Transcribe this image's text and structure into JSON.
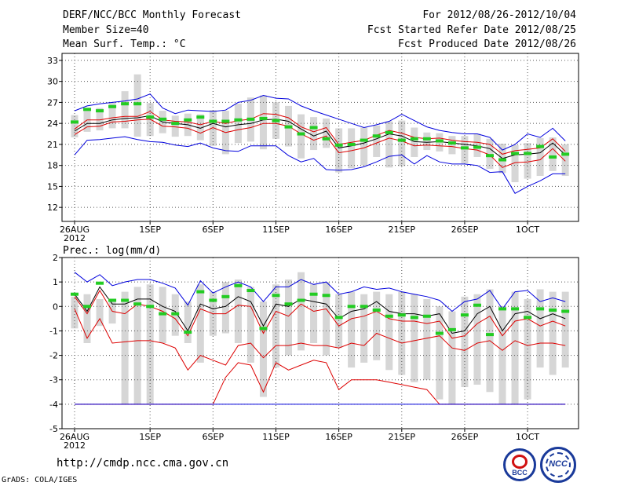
{
  "header": {
    "title": "DERF/NCC/BCC Monthly Forecast",
    "member_size": "Member Size=40",
    "variable1": "Mean Surf. Temp.: °C",
    "period": "For 2012/08/26-2012/10/04",
    "fcst_started": "Fcst Started Refer Date 2012/08/25",
    "fcst_produced": "Fcst Produced Date 2012/08/26"
  },
  "footer": {
    "url": "http://cmdp.ncc.cma.gov.cn",
    "credit": "GrADS: COLA/IGES",
    "logo_bcc": "BCC",
    "logo_ncc": "NCC"
  },
  "colors": {
    "blue": "#0000dd",
    "red": "#dd0000",
    "green": "#22cc22",
    "box": "#d6d6d6",
    "grid": "#555555"
  },
  "chart_data": [
    {
      "type": "line",
      "title": "Mean Surf. Temp.: °C",
      "xlabel": "",
      "ylabel": "",
      "ylim": [
        10,
        34
      ],
      "yticks": [
        12,
        15,
        18,
        21,
        24,
        27,
        30,
        33
      ],
      "x": "days 0..39 (2012-08-26 .. 2012-10-04)",
      "xtick_days": [
        0,
        6,
        11,
        16,
        21,
        26,
        31,
        36
      ],
      "xtick_labels": [
        "26AUG",
        "1SEP",
        "6SEP",
        "11SEP",
        "16SEP",
        "21SEP",
        "26SEP",
        "1OCT"
      ],
      "xtick_sublabel": "2012",
      "series": [
        {
          "name": "max",
          "color": "#0000dd",
          "values": [
            25.8,
            26.5,
            26.8,
            27.0,
            27.2,
            27.5,
            28.2,
            26.2,
            25.4,
            25.9,
            25.8,
            25.7,
            25.9,
            27.0,
            27.3,
            28.0,
            27.6,
            27.5,
            26.5,
            25.8,
            25.2,
            24.6,
            24.0,
            23.4,
            23.8,
            24.3,
            25.3,
            24.4,
            23.5,
            23.0,
            22.7,
            22.5,
            22.5,
            22.0,
            20.2,
            21.0,
            22.5,
            22.0,
            23.3,
            21.5
          ]
        },
        {
          "name": "upper",
          "color": "#dd0000",
          "values": [
            23.2,
            24.5,
            24.5,
            24.8,
            25.0,
            25.0,
            25.7,
            24.5,
            24.3,
            24.2,
            23.8,
            24.3,
            24.0,
            24.4,
            24.6,
            25.4,
            25.3,
            24.8,
            23.5,
            22.8,
            23.4,
            21.0,
            21.3,
            21.6,
            22.3,
            23.0,
            22.6,
            22.0,
            21.8,
            21.9,
            21.6,
            21.4,
            21.3,
            21.0,
            19.6,
            20.1,
            20.3,
            20.5,
            21.8,
            20.0
          ]
        },
        {
          "name": "mean",
          "color": "#000000",
          "values": [
            22.9,
            24.0,
            24.0,
            24.5,
            24.7,
            24.8,
            25.1,
            24.2,
            24.0,
            23.8,
            23.3,
            24.0,
            23.5,
            23.8,
            24.0,
            24.5,
            24.6,
            24.3,
            23.2,
            22.2,
            22.9,
            20.5,
            20.8,
            21.2,
            21.8,
            22.5,
            22.2,
            21.4,
            21.3,
            21.4,
            21.2,
            21.0,
            20.8,
            20.4,
            19.0,
            19.5,
            19.6,
            19.8,
            21.2,
            19.5
          ]
        },
        {
          "name": "lower",
          "color": "#dd0000",
          "values": [
            22.4,
            23.5,
            23.6,
            24.2,
            24.3,
            24.5,
            24.6,
            23.6,
            23.5,
            23.3,
            22.6,
            23.4,
            22.7,
            23.1,
            23.4,
            24.0,
            24.0,
            23.6,
            22.5,
            21.6,
            22.2,
            19.8,
            20.1,
            20.5,
            21.2,
            21.9,
            21.5,
            20.8,
            20.9,
            20.8,
            20.7,
            20.4,
            20.2,
            19.5,
            17.7,
            18.4,
            18.5,
            18.8,
            20.4,
            18.6
          ]
        },
        {
          "name": "min",
          "color": "#0000dd",
          "values": [
            19.5,
            21.6,
            21.7,
            21.9,
            22.1,
            21.7,
            21.4,
            21.3,
            20.9,
            20.7,
            21.2,
            20.5,
            20.1,
            20.0,
            20.8,
            20.8,
            20.8,
            19.4,
            18.5,
            19.0,
            17.4,
            17.3,
            17.4,
            17.8,
            18.5,
            19.3,
            19.5,
            18.2,
            19.4,
            18.5,
            18.2,
            18.2,
            18.0,
            17.0,
            17.1,
            14.0,
            15.0,
            15.8,
            16.8,
            16.8
          ]
        },
        {
          "name": "ens_box_top",
          "color": "#d6d6d6",
          "values": [
            25.2,
            25.8,
            26.2,
            27.0,
            28.6,
            31.0,
            26.9,
            25.8,
            25.1,
            25.4,
            25.3,
            25.9,
            25.8,
            26.8,
            27.7,
            28.0,
            27.0,
            26.5,
            25.3,
            24.9,
            24.7,
            23.3,
            23.3,
            23.4,
            23.7,
            24.3,
            24.4,
            23.4,
            22.7,
            22.6,
            22.2,
            22.2,
            22.5,
            21.8,
            21.1,
            20.9,
            21.2,
            21.9,
            22.0,
            21.0
          ]
        },
        {
          "name": "ens_box_bottom",
          "color": "#d6d6d6",
          "values": [
            22.0,
            22.8,
            23.0,
            23.3,
            23.3,
            22.1,
            22.2,
            22.6,
            22.1,
            22.2,
            21.6,
            20.8,
            19.6,
            21.2,
            21.4,
            20.3,
            21.8,
            20.7,
            19.0,
            20.2,
            20.5,
            17.0,
            17.6,
            18.0,
            19.2,
            17.7,
            17.9,
            19.2,
            20.2,
            20.0,
            19.6,
            18.3,
            19.2,
            17.5,
            16.9,
            15.6,
            16.1,
            16.5,
            17.2,
            16.5
          ]
        },
        {
          "name": "ens_median",
          "color": "#22cc22",
          "values": [
            24.2,
            26.0,
            25.8,
            26.4,
            26.8,
            26.8,
            24.9,
            24.6,
            24.0,
            24.5,
            24.9,
            24.3,
            24.3,
            24.5,
            24.6,
            24.7,
            24.4,
            23.5,
            22.5,
            23.4,
            21.8,
            20.9,
            21.0,
            21.6,
            22.2,
            22.7,
            21.6,
            21.8,
            21.8,
            21.5,
            21.2,
            20.5,
            20.6,
            19.4,
            18.8,
            19.7,
            19.7,
            20.7,
            19.2,
            19.6
          ]
        }
      ]
    },
    {
      "type": "line",
      "title": "Prec.: log(mm/d)",
      "xlabel": "",
      "ylabel": "",
      "ylim": [
        -5,
        2
      ],
      "yticks": [
        -5,
        -4,
        -3,
        -2,
        -1,
        0,
        1,
        2
      ],
      "x": "days 0..39 (2012-08-26 .. 2012-10-04)",
      "xtick_days": [
        0,
        6,
        11,
        16,
        21,
        26,
        31,
        36
      ],
      "xtick_labels": [
        "26AUG",
        "1SEP",
        "6SEP",
        "11SEP",
        "16SEP",
        "21SEP",
        "26SEP",
        "1OCT"
      ],
      "xtick_sublabel": "2012",
      "series": [
        {
          "name": "max",
          "color": "#0000dd",
          "values": [
            1.4,
            1.0,
            1.3,
            0.85,
            1.0,
            1.1,
            1.1,
            0.95,
            0.75,
            0.05,
            1.05,
            0.55,
            0.8,
            1.0,
            0.8,
            0.2,
            0.8,
            0.8,
            1.1,
            0.9,
            1.0,
            0.5,
            0.6,
            0.8,
            0.7,
            0.75,
            0.6,
            0.5,
            0.4,
            0.25,
            -0.2,
            0.2,
            0.3,
            0.65,
            -0.1,
            0.6,
            0.65,
            0.2,
            0.35,
            0.2
          ]
        },
        {
          "name": "mean",
          "color": "#000000",
          "values": [
            0.5,
            -0.2,
            0.8,
            0.1,
            0.1,
            0.3,
            0.3,
            0.0,
            -0.2,
            -1.0,
            0.1,
            -0.1,
            0.0,
            0.4,
            0.2,
            -0.8,
            0.1,
            0.0,
            0.3,
            0.2,
            0.1,
            -0.5,
            -0.2,
            -0.1,
            0.2,
            -0.2,
            -0.3,
            -0.3,
            -0.4,
            -0.3,
            -1.1,
            -1.0,
            -0.3,
            0.0,
            -1.0,
            -0.3,
            -0.2,
            -0.5,
            -0.3,
            -0.5
          ]
        },
        {
          "name": "upper",
          "color": "#dd0000",
          "values": [
            0.4,
            -0.3,
            0.65,
            -0.2,
            -0.3,
            0.1,
            0.0,
            -0.2,
            -0.5,
            -1.2,
            -0.1,
            -0.3,
            -0.3,
            0.05,
            0.0,
            -1.1,
            -0.2,
            -0.4,
            0.1,
            -0.2,
            -0.1,
            -0.8,
            -0.5,
            -0.4,
            -0.2,
            -0.5,
            -0.6,
            -0.6,
            -0.7,
            -0.6,
            -1.3,
            -1.2,
            -0.7,
            -0.4,
            -1.2,
            -0.6,
            -0.5,
            -0.8,
            -0.6,
            -0.8
          ]
        },
        {
          "name": "lower",
          "color": "#dd0000",
          "values": [
            -0.1,
            -1.3,
            -0.5,
            -1.5,
            -1.45,
            -1.4,
            -1.4,
            -1.5,
            -1.7,
            -2.6,
            -2.0,
            -2.2,
            -2.4,
            -1.6,
            -1.5,
            -2.1,
            -1.6,
            -1.6,
            -1.5,
            -1.6,
            -1.6,
            -1.7,
            -1.5,
            -1.6,
            -1.1,
            -1.3,
            -1.5,
            -1.4,
            -1.3,
            -1.2,
            -1.7,
            -1.8,
            -1.5,
            -1.4,
            -1.8,
            -1.4,
            -1.6,
            -1.5,
            -1.5,
            -1.6
          ]
        },
        {
          "name": "lower2",
          "color": "#dd0000",
          "values": [
            -4.0,
            -4.0,
            -4.0,
            -4.0,
            -4.0,
            -4.0,
            -4.0,
            -4.0,
            -4.0,
            -4.0,
            -4.0,
            -4.0,
            -2.9,
            -2.3,
            -2.4,
            -3.5,
            -2.3,
            -2.6,
            -2.4,
            -2.2,
            -2.3,
            -3.4,
            -3.0,
            -3.0,
            -3.0,
            -3.1,
            -3.2,
            -3.3,
            -3.4,
            -4.0,
            -4.0,
            -4.0,
            -4.0,
            -4.0,
            -4.0,
            -4.0,
            -4.0,
            -4.0,
            -4.0,
            -4.0
          ]
        },
        {
          "name": "min",
          "color": "#0000dd",
          "values": [
            -4.0,
            -4.0,
            -4.0,
            -4.0,
            -4.0,
            -4.0,
            -4.0,
            -4.0,
            -4.0,
            -4.0,
            -4.0,
            -4.0,
            -4.0,
            -4.0,
            -4.0,
            -4.0,
            -4.0,
            -4.0,
            -4.0,
            -4.0,
            -4.0,
            -4.0,
            -4.0,
            -4.0,
            -4.0,
            -4.0,
            -4.0,
            -4.0,
            -4.0,
            -4.0,
            -4.0,
            -4.0,
            -4.0,
            -4.0,
            -4.0,
            -4.0,
            -4.0,
            -4.0,
            -4.0,
            -4.0
          ]
        },
        {
          "name": "ens_box_top",
          "color": "#d6d6d6",
          "values": [
            0.4,
            0.5,
            0.3,
            0.3,
            0.6,
            0.8,
            0.9,
            0.8,
            0.5,
            0.2,
            0.9,
            0.6,
            1.0,
            1.1,
            0.8,
            0.2,
            0.9,
            1.1,
            1.4,
            0.9,
            1.0,
            0.5,
            0.6,
            0.5,
            0.6,
            0.5,
            0.6,
            0.5,
            0.3,
            0.0,
            -0.2,
            0.4,
            0.5,
            0.7,
            0.0,
            0.6,
            0.3,
            0.7,
            0.6,
            0.6
          ]
        },
        {
          "name": "ens_box_bottom",
          "color": "#d6d6d6",
          "values": [
            -0.9,
            -1.5,
            -0.8,
            -0.7,
            -4.0,
            -4.0,
            -4.0,
            -1.5,
            -1.2,
            -1.5,
            -2.3,
            -1.2,
            -1.1,
            -1.5,
            -2.3,
            -3.7,
            -2.5,
            -2.0,
            -1.8,
            -1.5,
            -2.0,
            -1.7,
            -2.5,
            -2.3,
            -2.2,
            -2.6,
            -2.8,
            -3.1,
            -3.0,
            -3.8,
            -4.0,
            -3.3,
            -3.2,
            -3.5,
            -4.0,
            -4.0,
            -3.8,
            -2.5,
            -2.8,
            -2.5
          ]
        },
        {
          "name": "ens_median",
          "color": "#22cc22",
          "values": [
            0.5,
            0.0,
            0.95,
            0.25,
            0.25,
            0.1,
            0.0,
            -0.3,
            -0.3,
            -1.05,
            0.6,
            0.25,
            0.4,
            0.85,
            0.65,
            -0.9,
            0.45,
            0.1,
            0.25,
            0.5,
            0.45,
            -0.45,
            0.0,
            0.0,
            -0.15,
            -0.4,
            -0.35,
            -0.45,
            -0.4,
            -1.1,
            -0.95,
            -0.35,
            0.05,
            -1.15,
            -0.1,
            -0.1,
            -0.45,
            -0.1,
            -0.15,
            -0.2
          ]
        }
      ]
    }
  ]
}
